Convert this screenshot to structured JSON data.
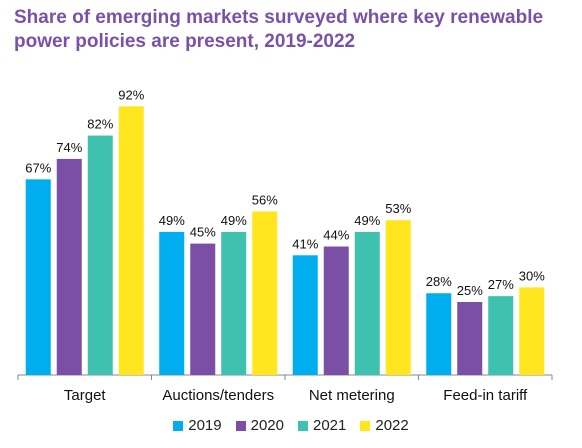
{
  "chart_data": {
    "type": "bar",
    "title": "Share of emerging markets surveyed where key renewable power policies are present, 2019-2022",
    "categories": [
      "Target",
      "Auctions/tenders",
      "Net metering",
      "Feed-in tariff"
    ],
    "series": [
      {
        "name": "2019",
        "color": "#00aeef",
        "values": [
          67,
          49,
          41,
          28
        ]
      },
      {
        "name": "2020",
        "color": "#7a4fa5",
        "values": [
          74,
          45,
          44,
          25
        ]
      },
      {
        "name": "2021",
        "color": "#3ec1ae",
        "values": [
          82,
          49,
          49,
          27
        ]
      },
      {
        "name": "2022",
        "color": "#ffe61f",
        "values": [
          92,
          56,
          53,
          30
        ]
      }
    ],
    "value_suffix": "%",
    "ylim": [
      0,
      100
    ],
    "grid": false,
    "legend_position": "bottom"
  }
}
